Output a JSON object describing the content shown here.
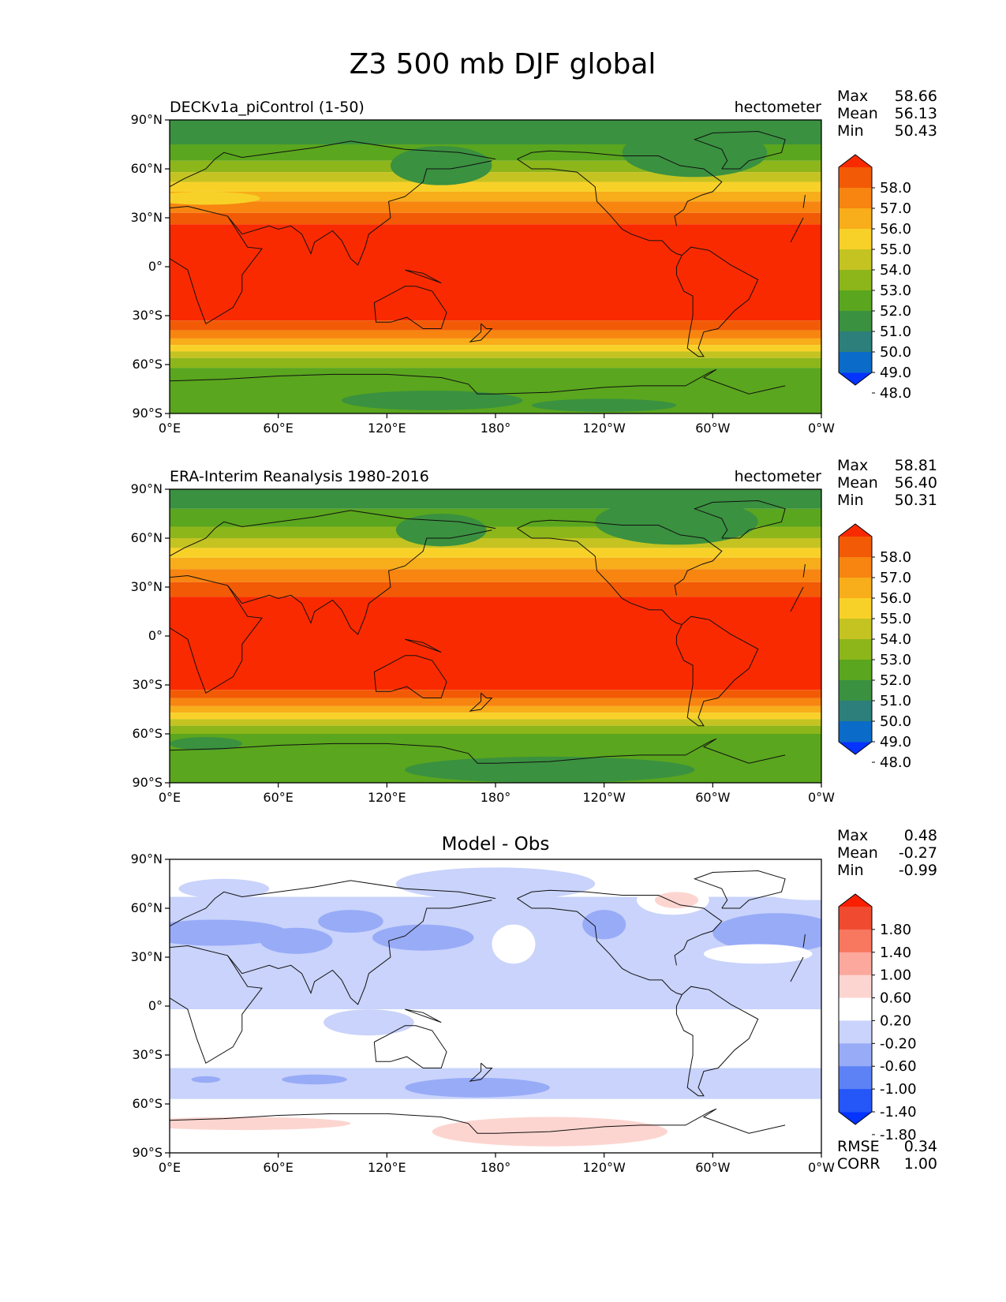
{
  "figure": {
    "title": "Z3 500 mb DJF global"
  },
  "chart_data": [
    {
      "type": "heatmap",
      "title": "DECKv1a_piControl (1-50)",
      "units": "hectometer",
      "stats": [
        {
          "label": "Max",
          "value": "58.66"
        },
        {
          "label": "Mean",
          "value": "56.13"
        },
        {
          "label": "Min",
          "value": "50.43"
        }
      ],
      "x_ticks": [
        "0°E",
        "60°E",
        "120°E",
        "180°",
        "120°W",
        "60°W",
        "0°W"
      ],
      "y_ticks": [
        "90°N",
        "60°N",
        "30°N",
        "0°",
        "30°S",
        "60°S",
        "90°S"
      ],
      "xlim": [
        0,
        360
      ],
      "ylim": [
        -90,
        90
      ],
      "colorbar": {
        "levels": [
          48.0,
          49.0,
          50.0,
          51.0,
          52.0,
          53.0,
          54.0,
          55.0,
          56.0,
          57.0,
          58.0
        ],
        "labels": [
          "58.0",
          "57.0",
          "56.0",
          "55.0",
          "54.0",
          "53.0",
          "52.0",
          "51.0",
          "50.0",
          "49.0",
          "48.0"
        ],
        "colors": [
          "#0533ff",
          "#0a6bc8",
          "#2c7f7a",
          "#3a9140",
          "#5aa61e",
          "#8db61a",
          "#c4c322",
          "#f8d128",
          "#f8ad1a",
          "#f78510",
          "#f25a06",
          "#fa2a00"
        ]
      },
      "bands": [
        {
          "lat": [
            75,
            90
          ],
          "level": 51
        },
        {
          "lat": [
            65,
            75
          ],
          "level": 52
        },
        {
          "lat": [
            58,
            65
          ],
          "level": 53
        },
        {
          "lat": [
            52,
            58
          ],
          "level": 54
        },
        {
          "lat": [
            46,
            52
          ],
          "level": 55
        },
        {
          "lat": [
            40,
            46
          ],
          "level": 56
        },
        {
          "lat": [
            33,
            40
          ],
          "level": 57
        },
        {
          "lat": [
            26,
            33
          ],
          "level": 58
        },
        {
          "lat": [
            -33,
            26
          ],
          "level": 59
        },
        {
          "lat": [
            -39,
            -33
          ],
          "level": 58
        },
        {
          "lat": [
            -44,
            -39
          ],
          "level": 57
        },
        {
          "lat": [
            -48,
            -44
          ],
          "level": 56
        },
        {
          "lat": [
            -52,
            -48
          ],
          "level": 55
        },
        {
          "lat": [
            -56,
            -52
          ],
          "level": 54
        },
        {
          "lat": [
            -62,
            -56
          ],
          "level": 53
        },
        {
          "lat": [
            -90,
            -62
          ],
          "level": 52
        }
      ],
      "features": [
        {
          "lon": 150,
          "lat": 62,
          "rx": 28,
          "ry": 12,
          "level": 51
        },
        {
          "lon": 290,
          "lat": 70,
          "rx": 40,
          "ry": 15,
          "level": 51
        },
        {
          "lon": 145,
          "lat": -82,
          "rx": 50,
          "ry": 6,
          "level": 51
        },
        {
          "lon": 240,
          "lat": -85,
          "rx": 40,
          "ry": 4,
          "level": 51
        },
        {
          "lon": 20,
          "lat": 42,
          "rx": 30,
          "ry": 4,
          "level": 55
        }
      ]
    },
    {
      "type": "heatmap",
      "title": "ERA-Interim Reanalysis 1980-2016",
      "units": "hectometer",
      "stats": [
        {
          "label": "Max",
          "value": "58.81"
        },
        {
          "label": "Mean",
          "value": "56.40"
        },
        {
          "label": "Min",
          "value": "50.31"
        }
      ],
      "x_ticks": [
        "0°E",
        "60°E",
        "120°E",
        "180°",
        "120°W",
        "60°W",
        "0°W"
      ],
      "y_ticks": [
        "90°N",
        "60°N",
        "30°N",
        "0°",
        "30°S",
        "60°S",
        "90°S"
      ],
      "xlim": [
        0,
        360
      ],
      "ylim": [
        -90,
        90
      ],
      "colorbar": {
        "levels": [
          48.0,
          49.0,
          50.0,
          51.0,
          52.0,
          53.0,
          54.0,
          55.0,
          56.0,
          57.0,
          58.0
        ],
        "labels": [
          "58.0",
          "57.0",
          "56.0",
          "55.0",
          "54.0",
          "53.0",
          "52.0",
          "51.0",
          "50.0",
          "49.0",
          "48.0"
        ],
        "colors": [
          "#0533ff",
          "#0a6bc8",
          "#2c7f7a",
          "#3a9140",
          "#5aa61e",
          "#8db61a",
          "#c4c322",
          "#f8d128",
          "#f8ad1a",
          "#f78510",
          "#f25a06",
          "#fa2a00"
        ]
      },
      "bands": [
        {
          "lat": [
            78,
            90
          ],
          "level": 51
        },
        {
          "lat": [
            67,
            78
          ],
          "level": 52
        },
        {
          "lat": [
            60,
            67
          ],
          "level": 53
        },
        {
          "lat": [
            54,
            60
          ],
          "level": 54
        },
        {
          "lat": [
            48,
            54
          ],
          "level": 55
        },
        {
          "lat": [
            41,
            48
          ],
          "level": 56
        },
        {
          "lat": [
            33,
            41
          ],
          "level": 57
        },
        {
          "lat": [
            24,
            33
          ],
          "level": 58
        },
        {
          "lat": [
            -33,
            24
          ],
          "level": 59
        },
        {
          "lat": [
            -38,
            -33
          ],
          "level": 58
        },
        {
          "lat": [
            -43,
            -38
          ],
          "level": 57
        },
        {
          "lat": [
            -47,
            -43
          ],
          "level": 56
        },
        {
          "lat": [
            -51,
            -47
          ],
          "level": 55
        },
        {
          "lat": [
            -55,
            -51
          ],
          "level": 54
        },
        {
          "lat": [
            -60,
            -55
          ],
          "level": 53
        },
        {
          "lat": [
            -90,
            -60
          ],
          "level": 52
        }
      ],
      "features": [
        {
          "lon": 150,
          "lat": 65,
          "rx": 25,
          "ry": 10,
          "level": 51
        },
        {
          "lon": 280,
          "lat": 70,
          "rx": 45,
          "ry": 14,
          "level": 51
        },
        {
          "lon": 20,
          "lat": -66,
          "rx": 20,
          "ry": 4,
          "level": 51
        },
        {
          "lon": 210,
          "lat": -82,
          "rx": 80,
          "ry": 8,
          "level": 51
        }
      ]
    },
    {
      "type": "heatmap",
      "title": "Model - Obs",
      "units": "",
      "stats": [
        {
          "label": "Max",
          "value": "0.48"
        },
        {
          "label": "Mean",
          "value": "-0.27"
        },
        {
          "label": "Min",
          "value": "-0.99"
        }
      ],
      "extra_stats": [
        {
          "label": "RMSE",
          "value": "0.34"
        },
        {
          "label": "CORR",
          "value": "1.00"
        }
      ],
      "x_ticks": [
        "0°E",
        "60°E",
        "120°E",
        "180°",
        "120°W",
        "60°W",
        "0°W"
      ],
      "y_ticks": [
        "90°N",
        "60°N",
        "30°N",
        "0°",
        "30°S",
        "60°S",
        "90°S"
      ],
      "xlim": [
        0,
        360
      ],
      "ylim": [
        -90,
        90
      ],
      "colorbar": {
        "levels": [
          -1.8,
          -1.4,
          -1.0,
          -0.6,
          -0.2,
          0.2,
          0.6,
          1.0,
          1.4,
          1.8
        ],
        "labels": [
          "1.80",
          "1.40",
          "1.00",
          "0.60",
          "0.20",
          "-0.20",
          "-0.60",
          "-1.00",
          "-1.40",
          "-1.80"
        ],
        "colors": [
          "#0533ff",
          "#2456f8",
          "#5c82f5",
          "#98abf7",
          "#c9d3fb",
          "#ffffff",
          "#fdd5d0",
          "#fca89d",
          "#f8775f",
          "#f04a30",
          "#f91f00"
        ]
      },
      "bands": [
        {
          "lat": [
            67,
            90
          ],
          "level": 5
        },
        {
          "lat": [
            -2,
            67
          ],
          "level": 4
        },
        {
          "lat": [
            -38,
            -2
          ],
          "level": 5
        },
        {
          "lat": [
            -57,
            -38
          ],
          "level": 4
        },
        {
          "lat": [
            -90,
            -57
          ],
          "level": 5
        }
      ],
      "features": [
        {
          "lon": 180,
          "lat": 75,
          "rx": 55,
          "ry": 10,
          "level": 4
        },
        {
          "lon": 30,
          "lat": 72,
          "rx": 25,
          "ry": 6,
          "level": 4
        },
        {
          "lon": 355,
          "lat": 72,
          "rx": 30,
          "ry": 7,
          "level": 5
        },
        {
          "lon": 25,
          "lat": 45,
          "rx": 40,
          "ry": 8,
          "level": 3
        },
        {
          "lon": 70,
          "lat": 40,
          "rx": 20,
          "ry": 8,
          "level": 3
        },
        {
          "lon": 100,
          "lat": 52,
          "rx": 18,
          "ry": 7,
          "level": 3
        },
        {
          "lon": 140,
          "lat": 42,
          "rx": 28,
          "ry": 8,
          "level": 3
        },
        {
          "lon": 240,
          "lat": 50,
          "rx": 12,
          "ry": 9,
          "level": 3
        },
        {
          "lon": 335,
          "lat": 45,
          "rx": 35,
          "ry": 12,
          "level": 3
        },
        {
          "lon": 190,
          "lat": 38,
          "rx": 12,
          "ry": 12,
          "level": 5
        },
        {
          "lon": 325,
          "lat": 32,
          "rx": 30,
          "ry": 6,
          "level": 5
        },
        {
          "lon": 278,
          "lat": 65,
          "rx": 20,
          "ry": 9,
          "level": 5
        },
        {
          "lon": 280,
          "lat": 65,
          "rx": 12,
          "ry": 5,
          "level": 6
        },
        {
          "lon": 110,
          "lat": -10,
          "rx": 25,
          "ry": 8,
          "level": 4
        },
        {
          "lon": 80,
          "lat": -45,
          "rx": 18,
          "ry": 3,
          "level": 3
        },
        {
          "lon": 20,
          "lat": -45,
          "rx": 8,
          "ry": 2,
          "level": 3
        },
        {
          "lon": 170,
          "lat": -50,
          "rx": 40,
          "ry": 6,
          "level": 3
        },
        {
          "lon": 40,
          "lat": -72,
          "rx": 60,
          "ry": 4,
          "level": 6
        },
        {
          "lon": 210,
          "lat": -77,
          "rx": 65,
          "ry": 9,
          "level": 6
        }
      ]
    }
  ]
}
